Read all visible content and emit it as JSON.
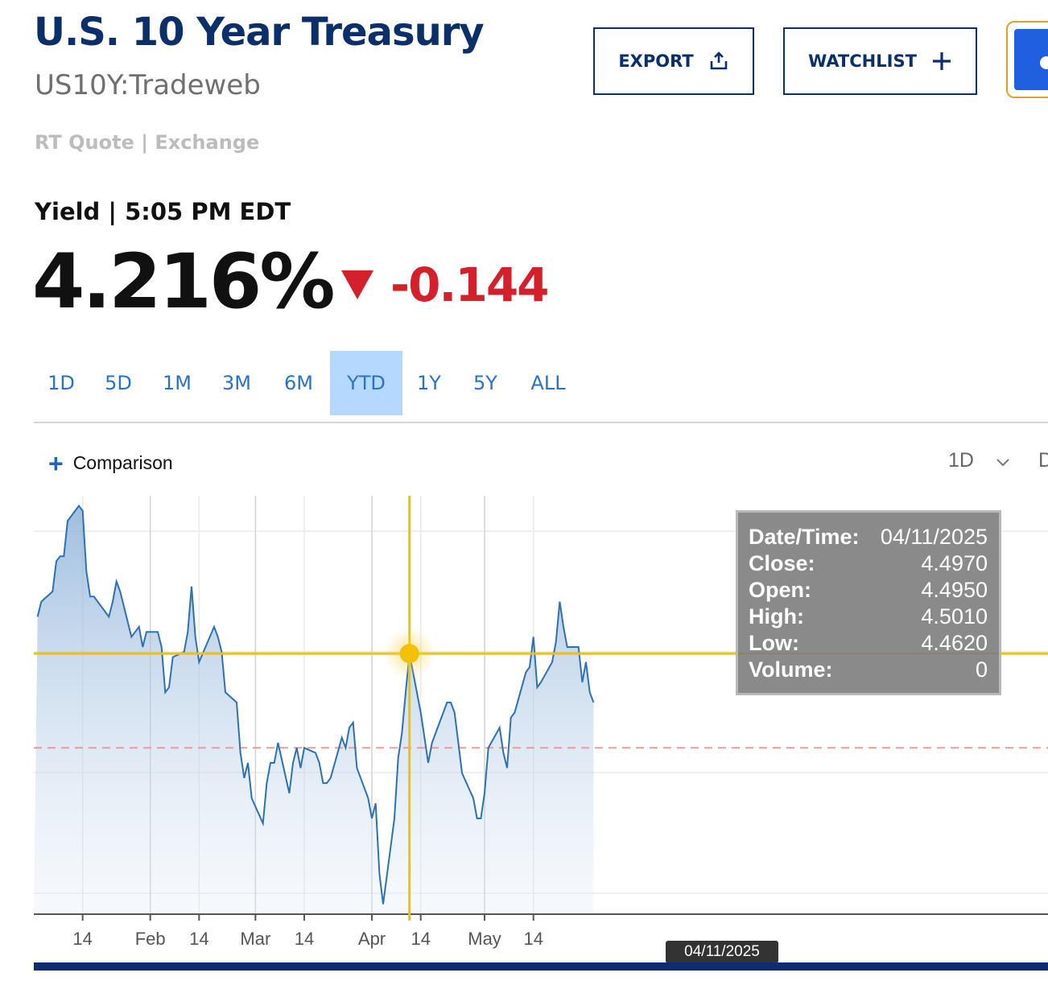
{
  "header": {
    "title": "U.S. 10 Year Treasury",
    "symbol": "US10Y:Tradeweb",
    "quote_type": "RT Quote | Exchange",
    "export_label": "EXPORT",
    "watchlist_label": "WATCHLIST"
  },
  "quote": {
    "label": "Yield | 5:05 PM EDT",
    "last": "4.216%",
    "change": "-0.144",
    "change_color": "#d4202a"
  },
  "ranges": {
    "items": [
      "1D",
      "5D",
      "1M",
      "3M",
      "6M",
      "YTD",
      "1Y",
      "5Y",
      "ALL"
    ],
    "active": "YTD"
  },
  "toolbar": {
    "comparison_label": "Comparison",
    "interval_label": "1D"
  },
  "chart_data": {
    "type": "area",
    "line_color": "#2e70b0",
    "crosshair_color": "#f2c200",
    "x_tick_labels": [
      "14",
      "Feb",
      "14",
      "Mar",
      "14",
      "Apr",
      "14",
      "May",
      "14"
    ],
    "reference_line": 4.31,
    "ylim": [
      3.98,
      4.81
    ],
    "points": [
      [
        "01/02/2025",
        4.57
      ],
      [
        "01/03/2025",
        4.6
      ],
      [
        "01/06/2025",
        4.62
      ],
      [
        "01/07/2025",
        4.68
      ],
      [
        "01/08/2025",
        4.69
      ],
      [
        "01/09/2025",
        4.69
      ],
      [
        "01/10/2025",
        4.76
      ],
      [
        "01/13/2025",
        4.79
      ],
      [
        "01/14/2025",
        4.78
      ],
      [
        "01/15/2025",
        4.66
      ],
      [
        "01/16/2025",
        4.61
      ],
      [
        "01/17/2025",
        4.61
      ],
      [
        "01/21/2025",
        4.57
      ],
      [
        "01/22/2025",
        4.6
      ],
      [
        "01/23/2025",
        4.64
      ],
      [
        "01/24/2025",
        4.62
      ],
      [
        "01/27/2025",
        4.53
      ],
      [
        "01/28/2025",
        4.54
      ],
      [
        "01/29/2025",
        4.55
      ],
      [
        "01/30/2025",
        4.51
      ],
      [
        "01/31/2025",
        4.54
      ],
      [
        "02/03/2025",
        4.54
      ],
      [
        "02/04/2025",
        4.51
      ],
      [
        "02/05/2025",
        4.42
      ],
      [
        "02/06/2025",
        4.43
      ],
      [
        "02/07/2025",
        4.49
      ],
      [
        "02/10/2025",
        4.5
      ],
      [
        "02/11/2025",
        4.54
      ],
      [
        "02/12/2025",
        4.63
      ],
      [
        "02/13/2025",
        4.53
      ],
      [
        "02/14/2025",
        4.48
      ],
      [
        "02/18/2025",
        4.55
      ],
      [
        "02/19/2025",
        4.53
      ],
      [
        "02/20/2025",
        4.5
      ],
      [
        "02/21/2025",
        4.42
      ],
      [
        "02/24/2025",
        4.4
      ],
      [
        "02/25/2025",
        4.3
      ],
      [
        "02/26/2025",
        4.25
      ],
      [
        "02/27/2025",
        4.28
      ],
      [
        "02/28/2025",
        4.21
      ],
      [
        "03/03/2025",
        4.16
      ],
      [
        "03/04/2025",
        4.24
      ],
      [
        "03/05/2025",
        4.28
      ],
      [
        "03/06/2025",
        4.28
      ],
      [
        "03/07/2025",
        4.32
      ],
      [
        "03/10/2025",
        4.22
      ],
      [
        "03/11/2025",
        4.28
      ],
      [
        "03/12/2025",
        4.31
      ],
      [
        "03/13/2025",
        4.27
      ],
      [
        "03/14/2025",
        4.31
      ],
      [
        "03/17/2025",
        4.3
      ],
      [
        "03/18/2025",
        4.28
      ],
      [
        "03/19/2025",
        4.24
      ],
      [
        "03/20/2025",
        4.24
      ],
      [
        "03/21/2025",
        4.25
      ],
      [
        "03/24/2025",
        4.33
      ],
      [
        "03/25/2025",
        4.31
      ],
      [
        "03/26/2025",
        4.35
      ],
      [
        "03/27/2025",
        4.36
      ],
      [
        "03/28/2025",
        4.27
      ],
      [
        "03/31/2025",
        4.21
      ],
      [
        "04/01/2025",
        4.17
      ],
      [
        "04/02/2025",
        4.2
      ],
      [
        "04/03/2025",
        4.06
      ],
      [
        "04/04/2025",
        4.0
      ],
      [
        "04/07/2025",
        4.17
      ],
      [
        "04/08/2025",
        4.29
      ],
      [
        "04/09/2025",
        4.34
      ],
      [
        "04/10/2025",
        4.42
      ],
      [
        "04/11/2025",
        4.497
      ],
      [
        "04/14/2025",
        4.38
      ],
      [
        "04/15/2025",
        4.33
      ],
      [
        "04/16/2025",
        4.28
      ],
      [
        "04/17/2025",
        4.32
      ],
      [
        "04/21/2025",
        4.4
      ],
      [
        "04/22/2025",
        4.4
      ],
      [
        "04/23/2025",
        4.38
      ],
      [
        "04/24/2025",
        4.32
      ],
      [
        "04/25/2025",
        4.26
      ],
      [
        "04/28/2025",
        4.21
      ],
      [
        "04/29/2025",
        4.17
      ],
      [
        "04/30/2025",
        4.17
      ],
      [
        "05/01/2025",
        4.22
      ],
      [
        "05/02/2025",
        4.31
      ],
      [
        "05/05/2025",
        4.35
      ],
      [
        "05/06/2025",
        4.3
      ],
      [
        "05/07/2025",
        4.27
      ],
      [
        "05/08/2025",
        4.37
      ],
      [
        "05/09/2025",
        4.38
      ],
      [
        "05/12/2025",
        4.46
      ],
      [
        "05/13/2025",
        4.47
      ],
      [
        "05/14/2025",
        4.53
      ],
      [
        "05/15/2025",
        4.43
      ],
      [
        "05/16/2025",
        4.44
      ],
      [
        "05/19/2025",
        4.48
      ],
      [
        "05/20/2025",
        4.52
      ],
      [
        "05/21/2025",
        4.6
      ],
      [
        "05/22/2025",
        4.55
      ],
      [
        "05/23/2025",
        4.51
      ],
      [
        "05/26/2025",
        4.51
      ],
      [
        "05/27/2025",
        4.44
      ],
      [
        "05/28/2025",
        4.48
      ],
      [
        "05/29/2025",
        4.42
      ],
      [
        "05/30/2025",
        4.4
      ]
    ],
    "crosshair": {
      "date": "04/11/2025",
      "value": 4.497
    }
  },
  "tooltip": {
    "date_label": "Date/Time:",
    "date_value": "04/11/2025",
    "close_label": "Close:",
    "close_value": "4.4970",
    "open_label": "Open:",
    "open_value": "4.4950",
    "high_label": "High:",
    "high_value": "4.5010",
    "low_label": "Low:",
    "low_value": "4.4620",
    "volume_label": "Volume:",
    "volume_value": "0"
  },
  "date_badge": "04/11/2025"
}
